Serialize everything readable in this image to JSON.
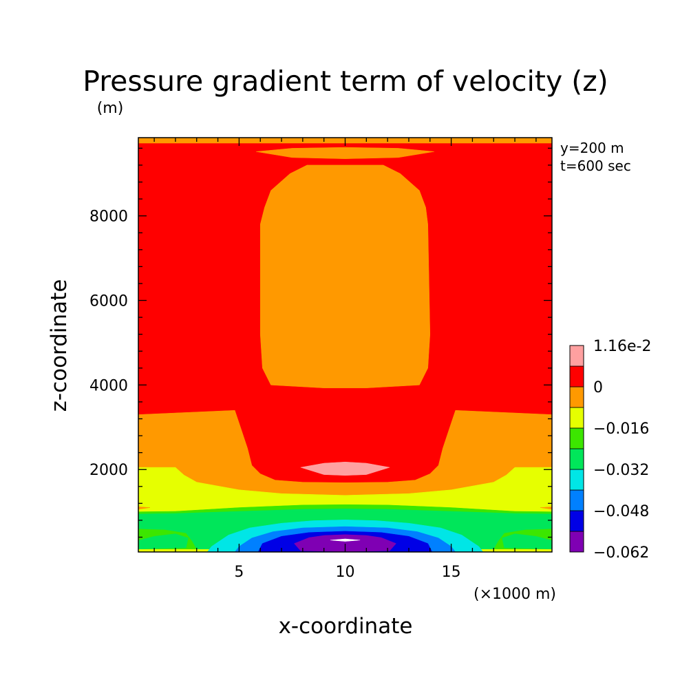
{
  "chart_data": {
    "type": "heatmap",
    "title": "Pressure gradient term of velocity (z)",
    "ylabel_unit": "(m)",
    "xlabel": "x-coordinate",
    "xlabel_unit": "(×1000 m)",
    "ylabel": "z-coordinate",
    "annotations": [
      "y=200 m",
      "t=600 sec"
    ],
    "xlim": [
      0.25,
      19.75
    ],
    "ylim": [
      50,
      9850
    ],
    "x_ticks": [
      5,
      10,
      15
    ],
    "y_ticks": [
      2000,
      4000,
      6000,
      8000
    ],
    "colorbar": {
      "levels": [
        -0.062,
        -0.055,
        -0.048,
        -0.04,
        -0.032,
        -0.024,
        -0.016,
        -0.008,
        0,
        0.0116
      ],
      "colors": [
        "#7f00b3",
        "#0000e6",
        "#0080ff",
        "#00e6e6",
        "#00e65a",
        "#3ce600",
        "#e6ff00",
        "#ff9900",
        "#ff0000",
        "#ffa0a0"
      ],
      "labels": [
        {
          "value": 0.0116,
          "text": "1.16e-2"
        },
        {
          "value": 0,
          "text": "0"
        },
        {
          "value": -0.016,
          "text": "−0.016"
        },
        {
          "value": -0.032,
          "text": "−0.032"
        },
        {
          "value": -0.048,
          "text": "−0.048"
        },
        {
          "value": -0.062,
          "text": "−0.062"
        }
      ]
    },
    "regions": [
      {
        "name": "top-edge-band",
        "level": 7,
        "points": [
          [
            0.25,
            9850
          ],
          [
            19.75,
            9850
          ],
          [
            19.75,
            9720
          ],
          [
            0.25,
            9720
          ]
        ]
      },
      {
        "name": "upper-lens",
        "level": 7,
        "points": [
          [
            5.8,
            9520
          ],
          [
            7.5,
            9600
          ],
          [
            10,
            9620
          ],
          [
            12.5,
            9600
          ],
          [
            14.2,
            9520
          ],
          [
            12.5,
            9380
          ],
          [
            10,
            9350
          ],
          [
            7.5,
            9380
          ]
        ]
      },
      {
        "name": "central-column",
        "level": 7,
        "points": [
          [
            8.2,
            9200
          ],
          [
            11.8,
            9200
          ],
          [
            12.6,
            9000
          ],
          [
            13.5,
            8600
          ],
          [
            13.8,
            8200
          ],
          [
            13.9,
            7800
          ],
          [
            14.0,
            5200
          ],
          [
            13.9,
            4400
          ],
          [
            13.5,
            4000
          ],
          [
            11,
            3930
          ],
          [
            9,
            3930
          ],
          [
            6.5,
            4000
          ],
          [
            6.1,
            4400
          ],
          [
            6.0,
            5200
          ],
          [
            6.0,
            7800
          ],
          [
            6.2,
            8200
          ],
          [
            6.5,
            8600
          ],
          [
            7.4,
            9000
          ]
        ]
      },
      {
        "name": "lower-band",
        "level": 7,
        "points": [
          [
            0.25,
            3300
          ],
          [
            4.8,
            3400
          ],
          [
            5.0,
            3100
          ],
          [
            5.4,
            2500
          ],
          [
            5.6,
            2100
          ],
          [
            6.0,
            1900
          ],
          [
            6.7,
            1750
          ],
          [
            8,
            1700
          ],
          [
            10,
            1690
          ],
          [
            12,
            1700
          ],
          [
            13.3,
            1750
          ],
          [
            14.0,
            1900
          ],
          [
            14.4,
            2100
          ],
          [
            14.6,
            2500
          ],
          [
            15.0,
            3100
          ],
          [
            15.2,
            3400
          ],
          [
            19.75,
            3300
          ],
          [
            19.75,
            1300
          ],
          [
            0.25,
            1300
          ]
        ]
      },
      {
        "name": "low-lens",
        "level": 9,
        "points": [
          [
            7.9,
            2050
          ],
          [
            9,
            2150
          ],
          [
            10,
            2180
          ],
          [
            11,
            2150
          ],
          [
            12.1,
            2050
          ],
          [
            11,
            1880
          ],
          [
            10,
            1860
          ],
          [
            9,
            1880
          ]
        ]
      },
      {
        "name": "yellow-band",
        "level": 6,
        "points": [
          [
            0.25,
            2050
          ],
          [
            2,
            2050
          ],
          [
            2.4,
            1870
          ],
          [
            3,
            1700
          ],
          [
            5,
            1520
          ],
          [
            7,
            1430
          ],
          [
            10,
            1390
          ],
          [
            13,
            1430
          ],
          [
            15,
            1520
          ],
          [
            17,
            1700
          ],
          [
            17.6,
            1870
          ],
          [
            18,
            2050
          ],
          [
            19.75,
            2050
          ],
          [
            19.75,
            50
          ],
          [
            0.25,
            50
          ]
        ]
      },
      {
        "name": "green-edge-notch",
        "level": 7,
        "points": [
          [
            0.25,
            1120
          ],
          [
            0.8,
            1100
          ],
          [
            0.25,
            1060
          ]
        ]
      },
      {
        "name": "green-edge-notch-r",
        "level": 7,
        "points": [
          [
            19.75,
            1120
          ],
          [
            19.2,
            1100
          ],
          [
            19.75,
            1060
          ]
        ]
      },
      {
        "name": "lgreen-band",
        "level": 5,
        "points": [
          [
            0.25,
            1000
          ],
          [
            2,
            1010
          ],
          [
            5,
            1100
          ],
          [
            8,
            1160
          ],
          [
            10,
            1170
          ],
          [
            12,
            1160
          ],
          [
            15,
            1100
          ],
          [
            18,
            1010
          ],
          [
            19.75,
            1000
          ],
          [
            19.75,
            120
          ],
          [
            0.25,
            120
          ]
        ]
      },
      {
        "name": "green-band",
        "level": 4,
        "points": [
          [
            0.25,
            950
          ],
          [
            2,
            960
          ],
          [
            5,
            1010
          ],
          [
            8,
            1060
          ],
          [
            10,
            1070
          ],
          [
            12,
            1060
          ],
          [
            15,
            1010
          ],
          [
            18,
            960
          ],
          [
            19.75,
            950
          ],
          [
            19.75,
            600
          ],
          [
            18.5,
            580
          ],
          [
            17.5,
            500
          ],
          [
            17.2,
            300
          ],
          [
            17,
            120
          ],
          [
            3,
            120
          ],
          [
            2.8,
            300
          ],
          [
            2.5,
            500
          ],
          [
            1.5,
            580
          ],
          [
            0.25,
            600
          ]
        ]
      },
      {
        "name": "cyan-ring",
        "level": 3,
        "points": [
          [
            3.7,
            180
          ],
          [
            4.5,
            450
          ],
          [
            5.5,
            620
          ],
          [
            7,
            730
          ],
          [
            8.5,
            790
          ],
          [
            10,
            810
          ],
          [
            11.5,
            790
          ],
          [
            13,
            730
          ],
          [
            14.5,
            620
          ],
          [
            15.5,
            450
          ],
          [
            16.3,
            180
          ],
          [
            16.5,
            50
          ],
          [
            3.5,
            50
          ]
        ]
      },
      {
        "name": "blue-ring",
        "level": 2,
        "points": [
          [
            5.0,
            180
          ],
          [
            5.6,
            380
          ],
          [
            6.6,
            530
          ],
          [
            8,
            620
          ],
          [
            10,
            650
          ],
          [
            12,
            620
          ],
          [
            13.4,
            530
          ],
          [
            14.4,
            380
          ],
          [
            15,
            180
          ],
          [
            15.2,
            50
          ],
          [
            4.8,
            50
          ]
        ]
      },
      {
        "name": "dblue-ring",
        "level": 1,
        "points": [
          [
            6.1,
            250
          ],
          [
            7,
            420
          ],
          [
            8.3,
            510
          ],
          [
            10,
            540
          ],
          [
            11.7,
            510
          ],
          [
            13,
            420
          ],
          [
            13.9,
            250
          ],
          [
            14.1,
            50
          ],
          [
            5.9,
            50
          ]
        ]
      },
      {
        "name": "purple-core",
        "level": 0,
        "points": [
          [
            7.6,
            250
          ],
          [
            8.3,
            390
          ],
          [
            9,
            440
          ],
          [
            10,
            460
          ],
          [
            11,
            440
          ],
          [
            11.7,
            390
          ],
          [
            12.4,
            250
          ],
          [
            12.1,
            80
          ],
          [
            10,
            60
          ],
          [
            7.9,
            80
          ]
        ]
      },
      {
        "name": "center-hole",
        "level": -1,
        "points": [
          [
            9.3,
            330
          ],
          [
            10,
            360
          ],
          [
            10.7,
            330
          ],
          [
            10,
            300
          ]
        ]
      },
      {
        "name": "right-edge-green-r",
        "level": 4,
        "points": [
          [
            19.75,
            320
          ],
          [
            19.0,
            420
          ],
          [
            18.0,
            480
          ],
          [
            17.4,
            380
          ],
          [
            17.5,
            150
          ],
          [
            19.75,
            120
          ]
        ]
      },
      {
        "name": "right-edge-green-l",
        "level": 4,
        "points": [
          [
            0.25,
            320
          ],
          [
            1.0,
            420
          ],
          [
            2.0,
            480
          ],
          [
            2.6,
            380
          ],
          [
            2.5,
            150
          ],
          [
            0.25,
            120
          ]
        ]
      }
    ]
  }
}
